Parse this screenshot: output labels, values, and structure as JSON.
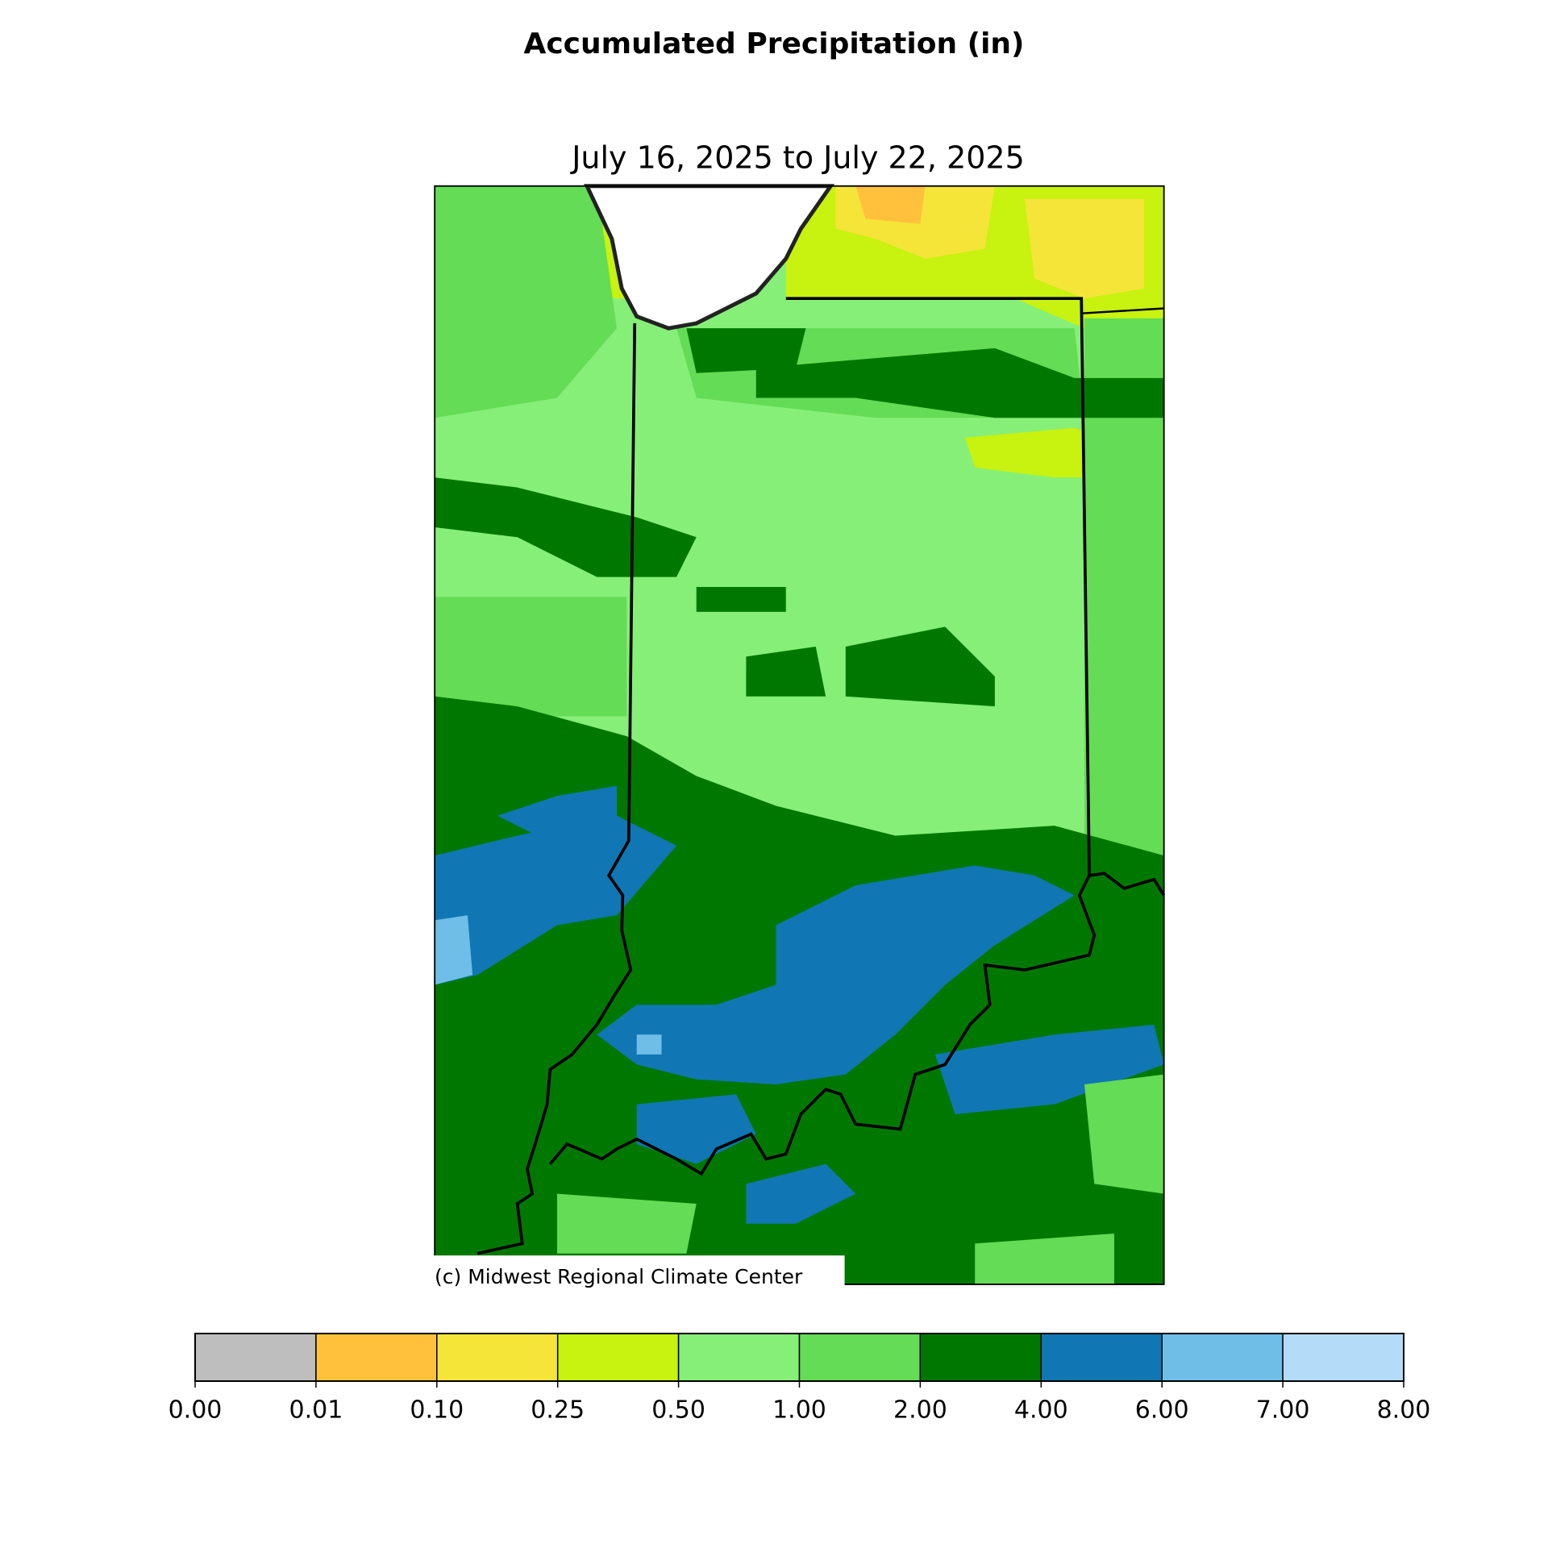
{
  "chart_data": {
    "type": "map",
    "title": "Accumulated Precipitation (in)",
    "subtitle": "July 16, 2025 to July 22, 2025",
    "credit": "(c) Midwest Regional Climate Center",
    "colorbar": {
      "ticks": [
        {
          "value": 0,
          "label": "0.00"
        },
        {
          "value": 0.01,
          "label": "0.01"
        },
        {
          "value": 0.1,
          "label": "0.10"
        },
        {
          "value": 0.25,
          "label": "0.25"
        },
        {
          "value": 0.5,
          "label": "0.50"
        },
        {
          "value": 1,
          "label": "1.00"
        },
        {
          "value": 2,
          "label": "2.00"
        },
        {
          "value": 4,
          "label": "4.00"
        },
        {
          "value": 6,
          "label": "6.00"
        },
        {
          "value": 7,
          "label": "7.00"
        },
        {
          "value": 8,
          "label": "8.00"
        }
      ],
      "colors": [
        "#bebebe",
        "#ffc13b",
        "#f5e539",
        "#c8f20f",
        "#86ef78",
        "#64dc55",
        "#007800",
        "#1077b4",
        "#6ebee8",
        "#b4dcf8"
      ]
    }
  }
}
